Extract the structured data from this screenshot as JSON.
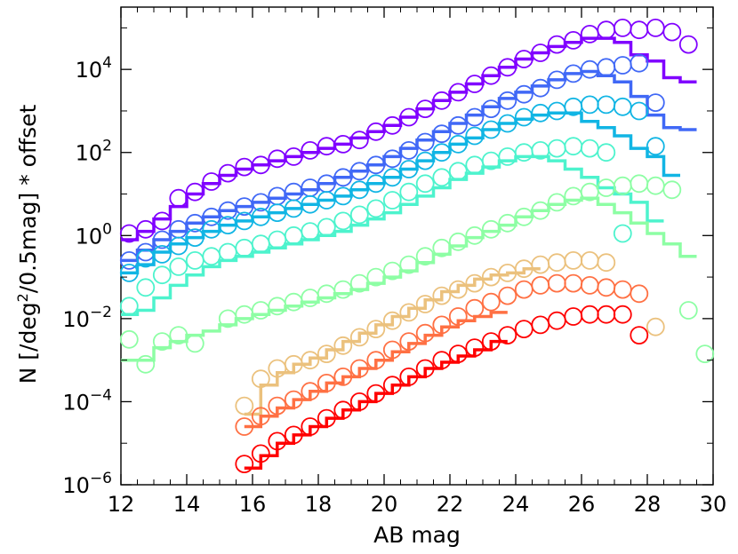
{
  "chart_data": {
    "type": "scatter",
    "xlabel": "AB mag",
    "ylabel": "N [/deg²/0.5mag] * offset",
    "ylabel_parts": {
      "pre": "N [/deg",
      "sup": "2",
      "post": "/0.5mag] * offset"
    },
    "x_scale": "linear",
    "y_scale": "log",
    "xlim": [
      12,
      30
    ],
    "ylim_log10": [
      -6,
      5.5
    ],
    "x_ticks": [
      12,
      14,
      16,
      18,
      20,
      22,
      24,
      26,
      28,
      30
    ],
    "x_tick_labels": [
      "12",
      "14",
      "16",
      "18",
      "20",
      "22",
      "24",
      "26",
      "28",
      "30"
    ],
    "y_ticks_log10": [
      -6,
      -4,
      -2,
      0,
      2,
      4
    ],
    "y_tick_labels": [
      {
        "base": "10",
        "exp": "−6"
      },
      {
        "base": "10",
        "exp": "−4"
      },
      {
        "base": "10",
        "exp": "−2"
      },
      {
        "base": "10",
        "exp": "0"
      },
      {
        "base": "10",
        "exp": "2"
      },
      {
        "base": "10",
        "exp": "4"
      }
    ],
    "marker": "open-circle",
    "series": [
      {
        "name": "series-1",
        "color": "#8000ff",
        "offset_log10": 4,
        "circles": {
          "start": 12.25,
          "values_log10": [
            -3.95,
            -3.85,
            -3.65,
            -3.1,
            -2.95,
            -2.7,
            -2.5,
            -2.35,
            -2.3,
            -2.15,
            -2.1,
            -1.95,
            -1.85,
            -1.8,
            -1.7,
            -1.5,
            -1.35,
            -1.15,
            -0.95,
            -0.75,
            -0.55,
            -0.35,
            -0.15,
            0.05,
            0.25,
            0.4,
            0.6,
            0.7,
            0.85,
            0.95,
            1.0,
            0.95,
            1.0,
            0.9,
            0.6
          ]
        },
        "hist": {
          "start": 12.0,
          "values_log10": [
            -4.1,
            -3.9,
            -3.6,
            -3.3,
            -3.0,
            -2.75,
            -2.55,
            -2.4,
            -2.3,
            -2.2,
            -2.1,
            -2.0,
            -1.9,
            -1.8,
            -1.65,
            -1.5,
            -1.35,
            -1.15,
            -0.95,
            -0.75,
            -0.55,
            -0.35,
            -0.15,
            0.05,
            0.25,
            0.4,
            0.55,
            0.65,
            0.75,
            0.75,
            0.65,
            0.35,
            0.2,
            -0.2,
            -0.3
          ]
        }
      },
      {
        "name": "series-2",
        "color": "#4068f6",
        "offset_log10": 3,
        "circles": {
          "start": 12.25,
          "values_log10": [
            -3.6,
            -3.4,
            -3.1,
            -2.85,
            -2.7,
            -2.55,
            -2.4,
            -2.3,
            -2.2,
            -2.05,
            -1.95,
            -1.85,
            -1.75,
            -1.6,
            -1.45,
            -1.3,
            -1.15,
            -0.95,
            -0.75,
            -0.55,
            -0.35,
            -0.15,
            0.05,
            0.25,
            0.4,
            0.55,
            0.75,
            0.9,
            1.0,
            1.05,
            1.1,
            1.15,
            0.2
          ]
        },
        "hist": {
          "start": 12.0,
          "values_log10": [
            -3.6,
            -3.35,
            -3.1,
            -2.9,
            -2.7,
            -2.55,
            -2.4,
            -2.3,
            -2.2,
            -2.1,
            -2.0,
            -1.9,
            -1.75,
            -1.6,
            -1.45,
            -1.3,
            -1.1,
            -0.9,
            -0.7,
            -0.5,
            -0.3,
            -0.1,
            0.1,
            0.3,
            0.45,
            0.6,
            0.75,
            0.9,
            0.95,
            0.85,
            0.7,
            0.35,
            -0.1,
            -0.4,
            -0.45
          ]
        }
      },
      {
        "name": "series-3",
        "color": "#11b5e4",
        "offset_log10": 2,
        "circles": {
          "start": 12.25,
          "values_log10": [
            -2.9,
            -2.55,
            -2.45,
            -2.25,
            -2.05,
            -1.85,
            -1.75,
            -1.65,
            -1.55,
            -1.45,
            -1.35,
            -1.25,
            -1.15,
            -1.05,
            -0.9,
            -0.75,
            -0.6,
            -0.4,
            -0.2,
            0.0,
            0.2,
            0.4,
            0.55,
            0.7,
            0.85,
            0.95,
            1.0,
            1.1,
            1.15,
            1.15,
            1.1,
            1.0,
            0.15
          ]
        },
        "hist": {
          "start": 12.0,
          "values_log10": [
            -2.9,
            -2.7,
            -2.4,
            -2.2,
            -2.05,
            -1.9,
            -1.75,
            -1.65,
            -1.55,
            -1.45,
            -1.35,
            -1.25,
            -1.15,
            -1.05,
            -0.9,
            -0.75,
            -0.6,
            -0.4,
            -0.2,
            0.0,
            0.2,
            0.35,
            0.55,
            0.7,
            0.8,
            0.9,
            0.95,
            0.95,
            0.75,
            0.6,
            0.4,
            0.1,
            -0.1,
            -0.55
          ]
        }
      },
      {
        "name": "series-4",
        "color": "#4df3cd",
        "offset_log10": 1,
        "circles": {
          "start": 12.25,
          "values_log10": [
            -2.7,
            -2.25,
            -1.95,
            -1.75,
            -1.6,
            -1.5,
            -1.4,
            -1.3,
            -1.2,
            -1.1,
            -1.0,
            -0.9,
            -0.8,
            -0.65,
            -0.5,
            -0.35,
            -0.15,
            0.05,
            0.25,
            0.4,
            0.55,
            0.7,
            0.8,
            0.9,
            1.0,
            1.05,
            1.1,
            1.15,
            1.1,
            1.0,
            -0.95
          ]
        },
        "hist": {
          "start": 12.0,
          "values_log10": [
            -2.9,
            -2.8,
            -2.5,
            -2.2,
            -1.95,
            -1.75,
            -1.6,
            -1.5,
            -1.4,
            -1.3,
            -1.2,
            -1.1,
            -1.0,
            -0.9,
            -0.75,
            -0.6,
            -0.45,
            -0.25,
            -0.05,
            0.15,
            0.35,
            0.5,
            0.65,
            0.8,
            0.9,
            0.9,
            0.8,
            0.6,
            0.4,
            0.15,
            0.0,
            -0.2,
            -0.65
          ]
        }
      },
      {
        "name": "series-5",
        "color": "#8dfea4",
        "offset_log10": 0,
        "circles": {
          "start": 12.25,
          "values_log10": [
            -2.5,
            -3.1,
            -2.55,
            -2.4,
            -2.6,
            null,
            -2.0,
            -1.9,
            -1.8,
            -1.7,
            -1.6,
            -1.5,
            -1.4,
            -1.3,
            -1.15,
            -1.0,
            -0.85,
            -0.7,
            -0.5,
            -0.3,
            -0.15,
            0.0,
            0.15,
            0.3,
            0.45,
            0.6,
            0.8,
            0.95,
            1.05,
            1.15,
            1.2,
            1.25,
            1.2,
            1.1,
            -1.8,
            -2.85
          ]
        },
        "hist": {
          "start": 12.0,
          "values_log10": [
            -3.0,
            -3.0,
            -2.7,
            -2.55,
            -2.4,
            -2.3,
            -2.15,
            -2.0,
            -1.9,
            -1.8,
            -1.7,
            -1.6,
            -1.5,
            -1.4,
            -1.3,
            -1.15,
            -1.0,
            -0.85,
            -0.65,
            -0.45,
            -0.25,
            -0.05,
            0.1,
            0.25,
            0.45,
            0.6,
            0.75,
            0.85,
            0.9,
            0.75,
            0.55,
            0.3,
            0.05,
            -0.2,
            -0.5
          ]
        }
      },
      {
        "name": "series-6",
        "color": "#ebc17d",
        "offset_log10": -1,
        "circles": {
          "start": 15.75,
          "values_log10": [
            -3.1,
            -2.45,
            -2.2,
            -2.1,
            -2.0,
            -1.85,
            -1.65,
            -1.45,
            -1.25,
            -1.05,
            -0.85,
            -0.65,
            -0.45,
            -0.3,
            -0.15,
            0.0,
            0.1,
            0.2,
            0.3,
            0.35,
            0.4,
            0.4,
            0.35,
            null,
            null,
            -1.2
          ]
        },
        "hist": {
          "start": 15.75,
          "values_log10": [
            -3.3,
            -2.6,
            -2.3,
            -2.1,
            -1.95,
            -1.75,
            -1.55,
            -1.35,
            -1.15,
            -0.95,
            -0.75,
            -0.55,
            -0.35,
            -0.2,
            -0.05,
            0.05,
            0.1,
            0.2
          ]
        }
      },
      {
        "name": "series-7",
        "color": "#ff7043",
        "offset_log10": -2,
        "circles": {
          "start": 15.75,
          "values_log10": [
            -2.6,
            -2.35,
            -2.1,
            -1.95,
            -1.75,
            -1.55,
            -1.4,
            -1.2,
            -1.0,
            -0.75,
            -0.55,
            -0.35,
            -0.15,
            0.05,
            0.25,
            0.4,
            0.55,
            0.7,
            0.8,
            0.85,
            0.85,
            0.8,
            0.75,
            0.7,
            0.6
          ]
        },
        "hist": {
          "start": 15.75,
          "values_log10": [
            -2.6,
            -2.35,
            -2.15,
            -1.95,
            -1.75,
            -1.55,
            -1.4,
            -1.2,
            -1.0,
            -0.8,
            -0.6,
            -0.4,
            -0.2,
            -0.05,
            0.05,
            0.15
          ]
        }
      },
      {
        "name": "series-8",
        "color": "#ff0000",
        "offset_log10": -3,
        "circles": {
          "start": 15.75,
          "values_log10": [
            -2.5,
            -2.25,
            -1.95,
            -1.8,
            -1.6,
            -1.4,
            -1.2,
            -1.0,
            -0.8,
            -0.6,
            -0.4,
            -0.2,
            0.0,
            0.15,
            0.3,
            0.45,
            0.6,
            0.75,
            0.85,
            0.95,
            1.05,
            1.1,
            1.1,
            1.1,
            0.6
          ]
        },
        "hist": {
          "start": 15.75,
          "values_log10": [
            -2.6,
            -2.3,
            -2.0,
            -1.8,
            -1.6,
            -1.4,
            -1.2,
            -1.0,
            -0.8,
            -0.6,
            -0.4,
            -0.2,
            -0.05,
            0.1,
            0.25,
            0.45
          ]
        }
      }
    ]
  }
}
